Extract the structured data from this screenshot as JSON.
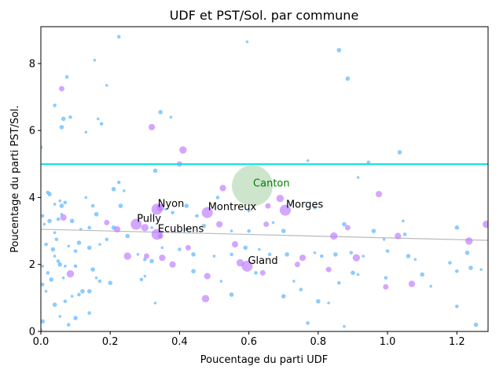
{
  "chart_data": {
    "type": "scatter",
    "title": "UDF et PST/Sol. par commune",
    "xlabel": "Poucentage du parti UDF",
    "ylabel": "Poucentage du parti PST/Sol.",
    "xlim": [
      0,
      1.29
    ],
    "ylim": [
      0,
      9.1
    ],
    "xticks": [
      0.0,
      0.2,
      0.4,
      0.6,
      0.8,
      1.0,
      1.2
    ],
    "xtick_labels": [
      "0.0",
      "0.2",
      "0.4",
      "0.6",
      "0.8",
      "1.0",
      "1.2"
    ],
    "yticks": [
      0,
      2,
      4,
      6,
      8
    ],
    "ytick_labels": [
      "0",
      "2",
      "4",
      "6",
      "8"
    ],
    "grid": false,
    "colors": {
      "small": "#66bbff",
      "medium": "#bb77ff",
      "canton": "#99cc99",
      "canton_label": "#008000",
      "hline": "#00e5e5",
      "trend": "#bbbbbb"
    },
    "hline": {
      "y": 5.0
    },
    "trend": {
      "x": [
        0,
        1.29
      ],
      "y": [
        3.05,
        2.72
      ]
    },
    "canton": {
      "label": "Canton",
      "x": 0.61,
      "y": 4.35
    },
    "labeled_points": [
      {
        "label": "Nyon",
        "x": 0.335,
        "y": 3.65
      },
      {
        "label": "Montreux",
        "x": 0.48,
        "y": 3.55
      },
      {
        "label": "Morges",
        "x": 0.705,
        "y": 3.62
      },
      {
        "label": "Pully",
        "x": 0.275,
        "y": 3.2
      },
      {
        "label": "Ecublens",
        "x": 0.335,
        "y": 2.9
      },
      {
        "label": "Gland",
        "x": 0.595,
        "y": 1.95
      }
    ],
    "medium_points": [
      [
        0.06,
        7.25
      ],
      [
        0.32,
        6.1
      ],
      [
        0.41,
        5.42
      ],
      [
        0.4,
        5.0
      ],
      [
        0.525,
        4.28
      ],
      [
        0.69,
        3.97
      ],
      [
        0.655,
        3.75
      ],
      [
        0.975,
        4.1
      ],
      [
        0.345,
        3.7
      ],
      [
        0.65,
        3.2
      ],
      [
        0.515,
        3.2
      ],
      [
        0.3,
        3.1
      ],
      [
        0.345,
        2.85
      ],
      [
        0.56,
        2.6
      ],
      [
        0.845,
        2.85
      ],
      [
        0.885,
        3.1
      ],
      [
        1.03,
        2.85
      ],
      [
        1.235,
        2.7
      ],
      [
        0.425,
        2.5
      ],
      [
        0.35,
        2.2
      ],
      [
        0.25,
        2.25
      ],
      [
        0.305,
        2.25
      ],
      [
        0.755,
        2.2
      ],
      [
        0.91,
        2.2
      ],
      [
        0.74,
        2.0
      ],
      [
        0.38,
        2.0
      ],
      [
        0.575,
        2.05
      ],
      [
        0.64,
        1.75
      ],
      [
        0.48,
        1.65
      ],
      [
        0.085,
        1.72
      ],
      [
        0.995,
        1.33
      ],
      [
        1.07,
        1.42
      ],
      [
        0.475,
        0.98
      ],
      [
        0.83,
        1.85
      ],
      [
        0.065,
        3.4
      ],
      [
        1.285,
        3.2
      ],
      [
        0.19,
        3.25
      ],
      [
        0.22,
        3.05
      ]
    ],
    "small_points": [
      [
        0.595,
        8.65
      ],
      [
        0.225,
        8.8
      ],
      [
        0.86,
        8.4
      ],
      [
        0.155,
        8.1
      ],
      [
        0.075,
        7.6
      ],
      [
        0.885,
        7.55
      ],
      [
        0.19,
        7.35
      ],
      [
        0.04,
        6.75
      ],
      [
        0.345,
        6.55
      ],
      [
        0.375,
        6.4
      ],
      [
        0.085,
        6.4
      ],
      [
        0.065,
        6.35
      ],
      [
        0.165,
        6.35
      ],
      [
        0.175,
        6.2
      ],
      [
        0.06,
        6.1
      ],
      [
        0.13,
        5.95
      ],
      [
        0.0,
        5.5
      ],
      [
        1.035,
        5.35
      ],
      [
        0.77,
        5.1
      ],
      [
        0.945,
        5.05
      ],
      [
        0.33,
        4.8
      ],
      [
        0.915,
        4.6
      ],
      [
        0.225,
        4.45
      ],
      [
        0.21,
        4.25
      ],
      [
        0.24,
        4.2
      ],
      [
        0.02,
        4.15
      ],
      [
        0.025,
        4.1
      ],
      [
        0.13,
        4.0
      ],
      [
        0.51,
        4.0
      ],
      [
        0.42,
        3.75
      ],
      [
        0.055,
        3.9
      ],
      [
        0.07,
        3.85
      ],
      [
        0.06,
        3.75
      ],
      [
        0.04,
        3.8
      ],
      [
        0.15,
        3.75
      ],
      [
        0.23,
        3.75
      ],
      [
        0.36,
        3.65
      ],
      [
        0.38,
        3.55
      ],
      [
        0.16,
        3.5
      ],
      [
        0.06,
        3.5
      ],
      [
        0.005,
        3.45
      ],
      [
        0.025,
        3.3
      ],
      [
        0.01,
        3.2
      ],
      [
        0.05,
        3.35
      ],
      [
        0.09,
        3.3
      ],
      [
        0.115,
        3.05
      ],
      [
        0.14,
        3.1
      ],
      [
        0.21,
        3.1
      ],
      [
        0.32,
        3.1
      ],
      [
        0.42,
        3.05
      ],
      [
        0.47,
        3.15
      ],
      [
        0.55,
        3.0
      ],
      [
        0.6,
        3.0
      ],
      [
        0.7,
        3.0
      ],
      [
        0.67,
        3.25
      ],
      [
        0.79,
        3.7
      ],
      [
        0.875,
        3.2
      ],
      [
        0.99,
        2.75
      ],
      [
        1.05,
        2.9
      ],
      [
        1.2,
        3.1
      ],
      [
        0.04,
        2.95
      ],
      [
        0.045,
        2.75
      ],
      [
        0.11,
        2.65
      ],
      [
        0.08,
        2.55
      ],
      [
        0.015,
        2.6
      ],
      [
        0.035,
        2.45
      ],
      [
        0.04,
        2.25
      ],
      [
        0.05,
        2.1
      ],
      [
        0.055,
        2.0
      ],
      [
        0.07,
        1.95
      ],
      [
        0.1,
        2.4
      ],
      [
        0.14,
        2.5
      ],
      [
        0.17,
        2.6
      ],
      [
        0.19,
        2.75
      ],
      [
        0.25,
        2.85
      ],
      [
        0.28,
        2.3
      ],
      [
        0.3,
        2.15
      ],
      [
        0.32,
        2.1
      ],
      [
        0.35,
        2.5
      ],
      [
        0.4,
        2.45
      ],
      [
        0.44,
        2.3
      ],
      [
        0.5,
        2.25
      ],
      [
        0.55,
        2.3
      ],
      [
        0.59,
        2.5
      ],
      [
        0.63,
        2.45
      ],
      [
        0.66,
        2.3
      ],
      [
        0.71,
        2.3
      ],
      [
        0.79,
        2.35
      ],
      [
        0.81,
        2.25
      ],
      [
        0.85,
        2.3
      ],
      [
        0.93,
        2.25
      ],
      [
        1.0,
        2.4
      ],
      [
        1.06,
        2.25
      ],
      [
        1.08,
        2.15
      ],
      [
        1.18,
        2.05
      ],
      [
        1.23,
        2.35
      ],
      [
        0.005,
        1.95
      ],
      [
        0.02,
        1.75
      ],
      [
        0.03,
        1.55
      ],
      [
        0.065,
        1.6
      ],
      [
        0.1,
        1.95
      ],
      [
        0.15,
        1.85
      ],
      [
        0.16,
        1.6
      ],
      [
        0.17,
        1.5
      ],
      [
        0.12,
        1.2
      ],
      [
        0.09,
        1.05
      ],
      [
        0.07,
        0.9
      ],
      [
        0.04,
        0.8
      ],
      [
        0.015,
        1.2
      ],
      [
        0.005,
        1.4
      ],
      [
        0.2,
        1.45
      ],
      [
        0.3,
        1.65
      ],
      [
        0.29,
        1.55
      ],
      [
        0.44,
        1.8
      ],
      [
        0.52,
        1.5
      ],
      [
        0.62,
        1.75
      ],
      [
        0.7,
        1.05
      ],
      [
        0.73,
        1.5
      ],
      [
        0.75,
        1.25
      ],
      [
        0.8,
        0.9
      ],
      [
        0.83,
        0.85
      ],
      [
        0.86,
        1.45
      ],
      [
        0.9,
        1.75
      ],
      [
        0.915,
        1.7
      ],
      [
        0.995,
        1.6
      ],
      [
        1.1,
        1.7
      ],
      [
        1.125,
        1.35
      ],
      [
        1.2,
        1.8
      ],
      [
        1.24,
        1.9
      ],
      [
        1.27,
        1.85
      ],
      [
        1.2,
        0.75
      ],
      [
        1.255,
        0.2
      ],
      [
        0.875,
        0.15
      ],
      [
        0.77,
        0.25
      ],
      [
        0.55,
        1.1
      ],
      [
        0.33,
        0.85
      ],
      [
        0.14,
        0.55
      ],
      [
        0.1,
        0.4
      ],
      [
        0.055,
        0.45
      ],
      [
        0.08,
        0.2
      ],
      [
        0.005,
        0.3
      ],
      [
        0.0,
        0.05
      ],
      [
        0.11,
        1.1
      ],
      [
        0.14,
        1.2
      ],
      [
        1.045,
        3.3
      ],
      [
        0.895,
        2.35
      ],
      [
        0.96,
        3.0
      ],
      [
        0.6,
        3.6
      ],
      [
        0.45,
        3.45
      ]
    ]
  }
}
